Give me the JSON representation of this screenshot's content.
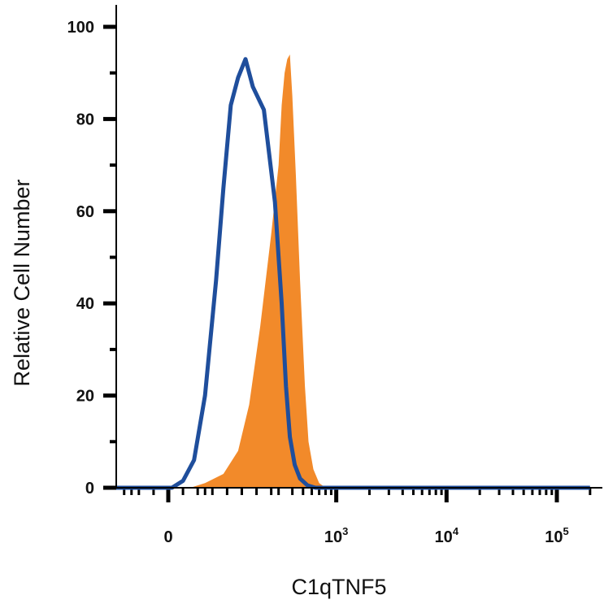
{
  "chart_data": {
    "type": "area",
    "title": "",
    "xlabel": "C1qTNF5",
    "ylabel": "Relative Cell Number",
    "x_scale": "biexponential",
    "xlim": [
      -300,
      200000
    ],
    "ylim": [
      0,
      100
    ],
    "grid": false,
    "legend": "none",
    "y_ticks": [
      {
        "value": 0,
        "label": "0"
      },
      {
        "value": 20,
        "label": "20"
      },
      {
        "value": 40,
        "label": "40"
      },
      {
        "value": 60,
        "label": "60"
      },
      {
        "value": 80,
        "label": "80"
      },
      {
        "value": 100,
        "label": "100"
      }
    ],
    "x_ticks": [
      {
        "value": 0,
        "base": "0",
        "exp": ""
      },
      {
        "value": 1000,
        "base": "10",
        "exp": "3"
      },
      {
        "value": 10000,
        "base": "10",
        "exp": "4"
      },
      {
        "value": 100000,
        "base": "10",
        "exp": "5"
      }
    ],
    "series": [
      {
        "role": "filled",
        "color": "#f28a2a",
        "points": [
          [
            -200,
            0
          ],
          [
            60,
            0
          ],
          [
            100,
            1
          ],
          [
            150,
            3
          ],
          [
            190,
            8
          ],
          [
            220,
            18
          ],
          [
            250,
            35
          ],
          [
            280,
            55
          ],
          [
            300,
            70
          ],
          [
            320,
            83
          ],
          [
            340,
            90
          ],
          [
            360,
            93
          ],
          [
            380,
            94
          ],
          [
            400,
            85
          ],
          [
            430,
            68
          ],
          [
            470,
            45
          ],
          [
            520,
            22
          ],
          [
            560,
            10
          ],
          [
            620,
            4
          ],
          [
            700,
            1
          ],
          [
            800,
            0
          ],
          [
            200000,
            0
          ]
        ]
      },
      {
        "role": "outline",
        "color": "#1f4e9c",
        "points": [
          [
            -200,
            0
          ],
          [
            10,
            0
          ],
          [
            40,
            1.5
          ],
          [
            70,
            6
          ],
          [
            100,
            20
          ],
          [
            130,
            45
          ],
          [
            150,
            65
          ],
          [
            170,
            83
          ],
          [
            190,
            89
          ],
          [
            210,
            93
          ],
          [
            230,
            87
          ],
          [
            260,
            82
          ],
          [
            290,
            62
          ],
          [
            320,
            40
          ],
          [
            350,
            22
          ],
          [
            380,
            11
          ],
          [
            420,
            5
          ],
          [
            470,
            2
          ],
          [
            550,
            0.5
          ],
          [
            650,
            0
          ],
          [
            200000,
            0
          ]
        ]
      }
    ]
  }
}
